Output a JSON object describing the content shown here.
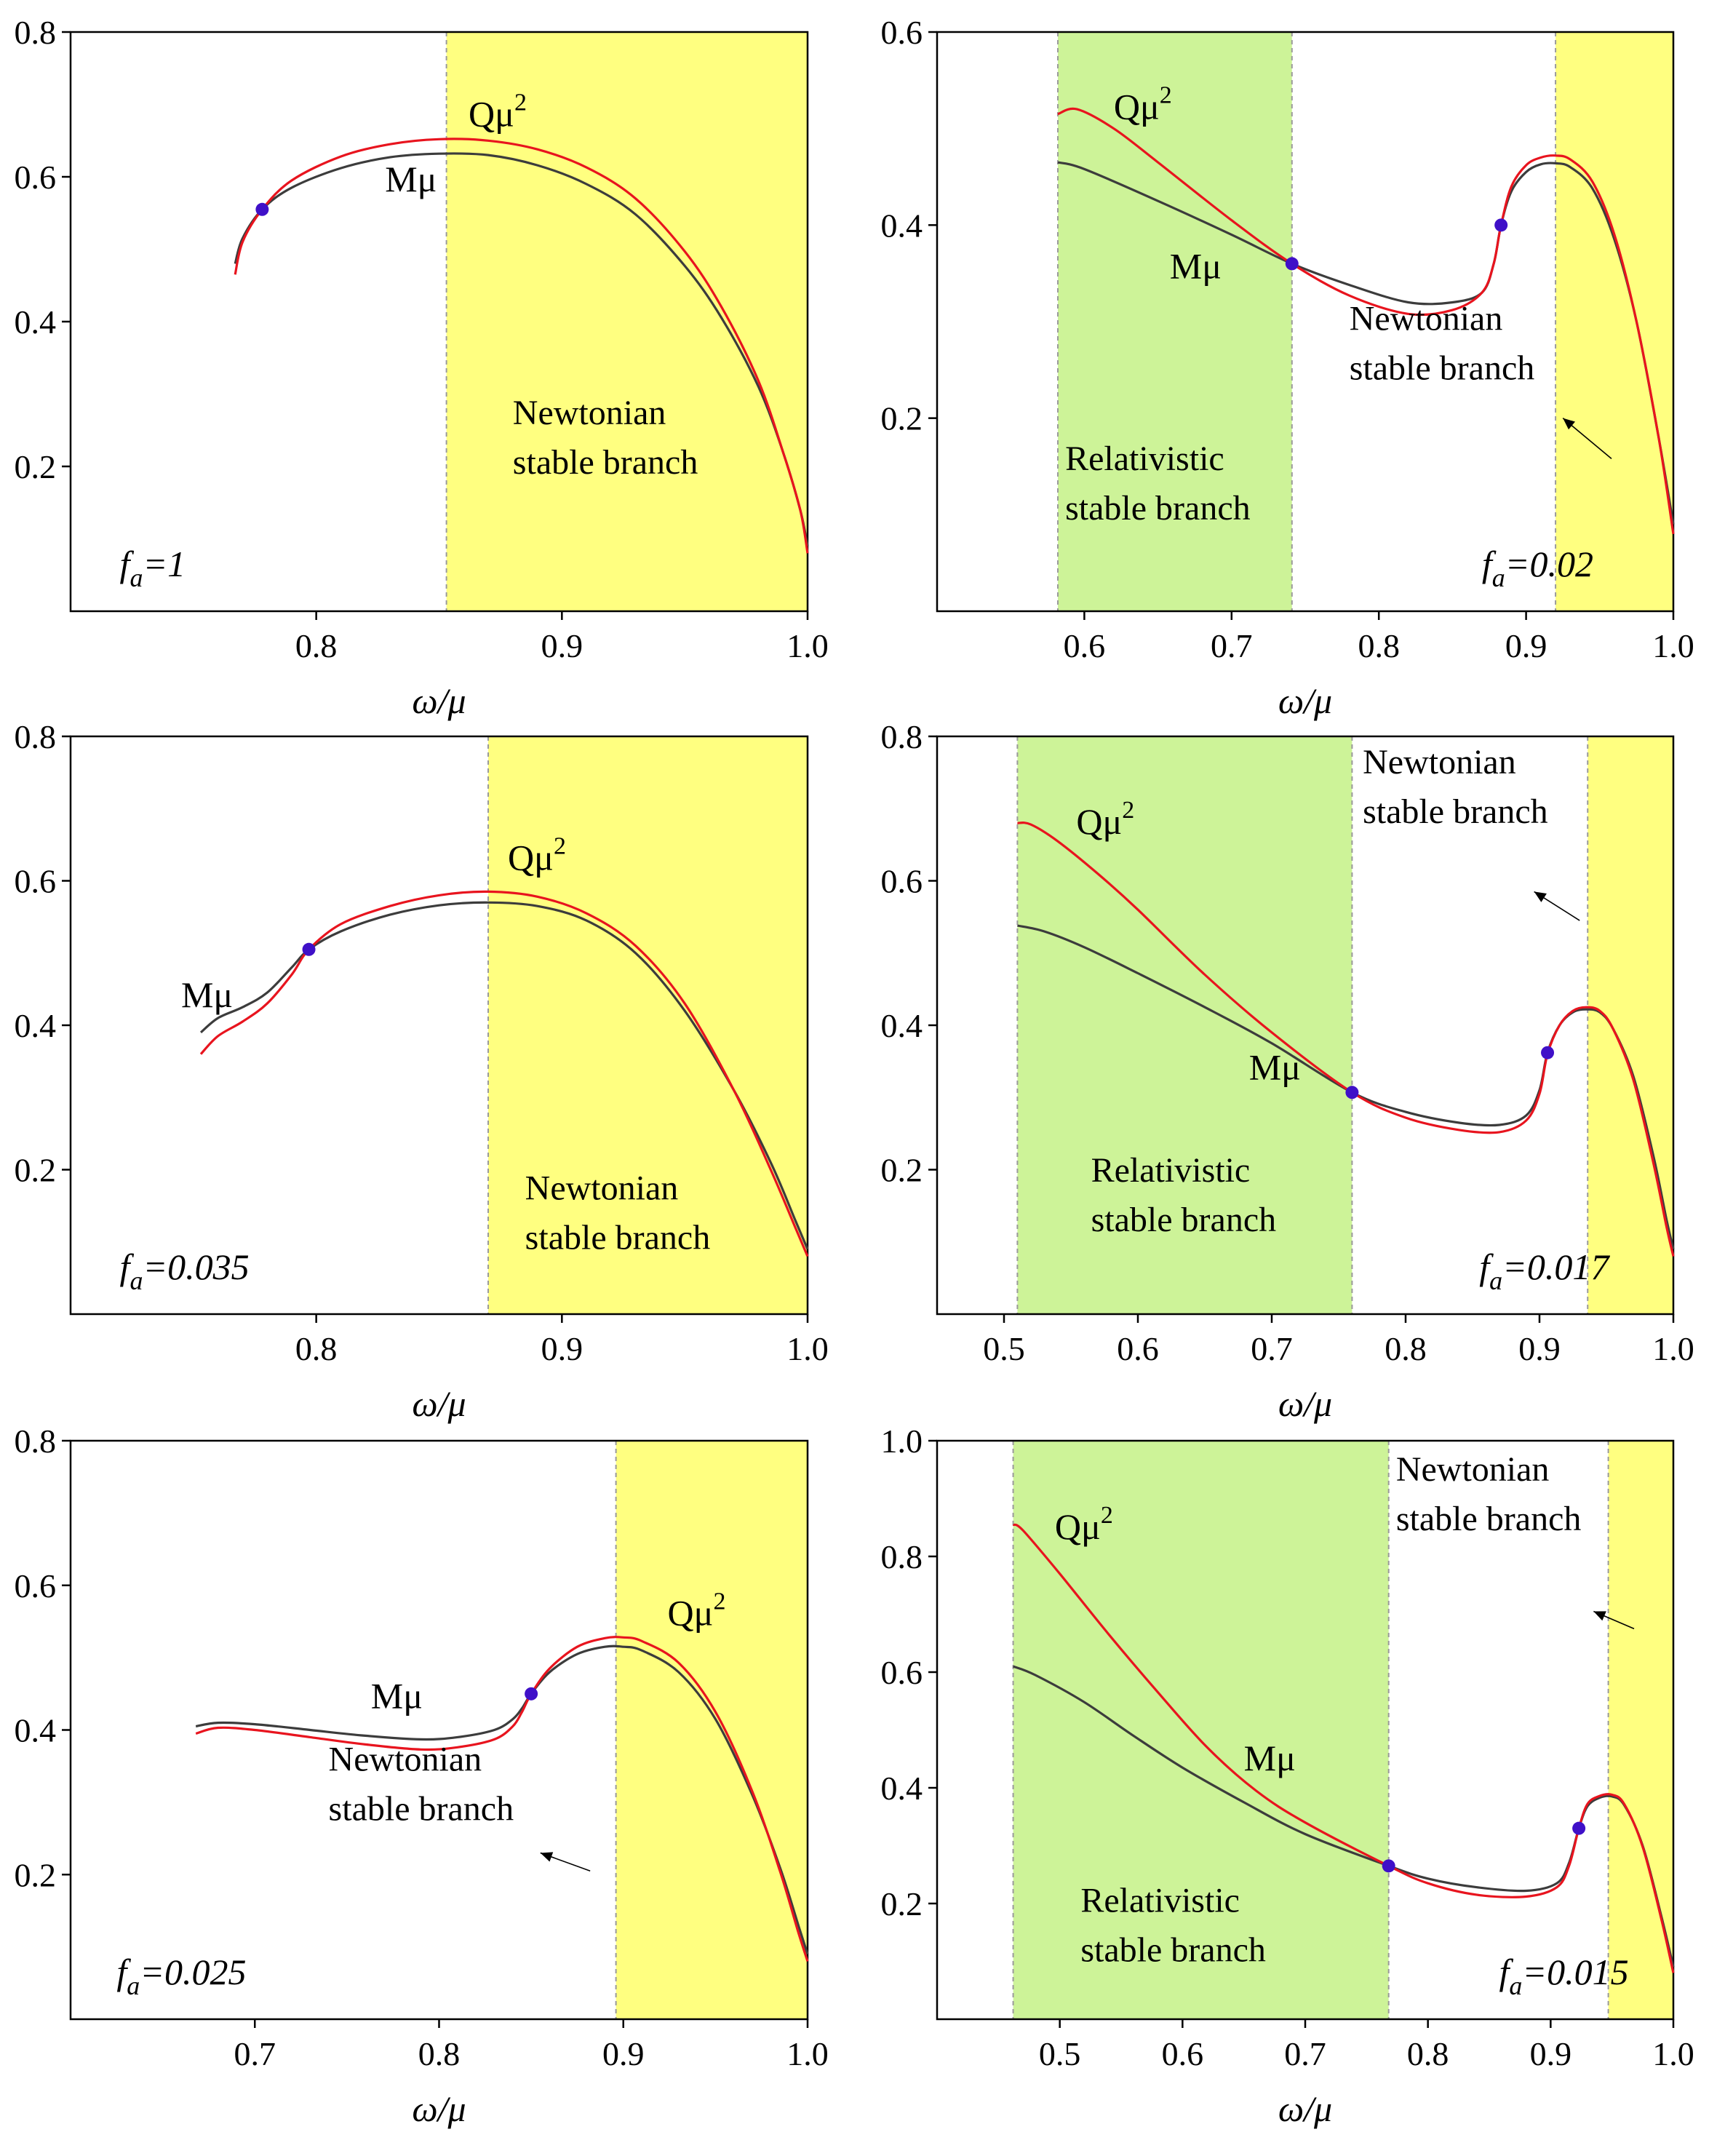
{
  "figure": {
    "colors": {
      "newtonian_fill": "#ffff80",
      "relativistic_fill": "#cdf398",
      "M_curve": "#3c3c3c",
      "Q_curve": "#e8141e",
      "marker": "#3f10c8",
      "axis": "#000000",
      "band_edge": "#9a9a9a"
    }
  },
  "chart_data": [
    {
      "type": "line",
      "panel": "top-left",
      "xlabel": "ω/μ",
      "ylabel": "",
      "xlim": [
        0.7,
        1.0
      ],
      "ylim": [
        0.0,
        0.8
      ],
      "xticks": [
        0.8,
        0.9,
        1.0
      ],
      "xtick_labels": [
        "0.8",
        "0.9",
        "1.0"
      ],
      "yticks": [
        0.2,
        0.4,
        0.6,
        0.8
      ],
      "ytick_labels": [
        "0.2",
        "0.4",
        "0.6",
        "0.8"
      ],
      "param_prefix": "f",
      "param_sub": "a",
      "param_value": "=1",
      "labels": {
        "M": "Mμ",
        "Q": "Qμ",
        "Q_sup": "2"
      },
      "regions": [
        {
          "kind": "newtonian",
          "x0": 0.853,
          "x1": 1.0,
          "text": [
            "Newtonian",
            "stable branch"
          ],
          "text_at": [
            0.88,
            0.19
          ]
        }
      ],
      "label_positions": {
        "M": [
          0.828,
          0.58
        ],
        "Q": [
          0.862,
          0.67
        ]
      },
      "arrow": null,
      "markers": [
        {
          "x": 0.778,
          "y": 0.555
        }
      ],
      "series": [
        {
          "name": "Mμ",
          "x": [
            0.767,
            0.77,
            0.778,
            0.79,
            0.81,
            0.83,
            0.85,
            0.87,
            0.89,
            0.91,
            0.93,
            0.95,
            0.965,
            0.98,
            0.99,
            0.997,
            1.0
          ],
          "y": [
            0.48,
            0.515,
            0.555,
            0.585,
            0.612,
            0.627,
            0.632,
            0.63,
            0.616,
            0.59,
            0.548,
            0.477,
            0.405,
            0.31,
            0.22,
            0.14,
            0.09
          ]
        },
        {
          "name": "Qμ²",
          "x": [
            0.767,
            0.77,
            0.778,
            0.79,
            0.81,
            0.83,
            0.85,
            0.87,
            0.89,
            0.91,
            0.93,
            0.95,
            0.965,
            0.98,
            0.99,
            0.997,
            1.0
          ],
          "y": [
            0.465,
            0.51,
            0.555,
            0.595,
            0.628,
            0.645,
            0.652,
            0.65,
            0.638,
            0.613,
            0.57,
            0.497,
            0.42,
            0.318,
            0.22,
            0.14,
            0.08
          ]
        }
      ]
    },
    {
      "type": "line",
      "panel": "top-right",
      "xlabel": "ω/μ",
      "ylabel": "",
      "xlim": [
        0.5,
        1.0
      ],
      "ylim": [
        0.0,
        0.6
      ],
      "xticks": [
        0.6,
        0.7,
        0.8,
        0.9,
        1.0
      ],
      "xtick_labels": [
        "0.6",
        "0.7",
        "0.8",
        "0.9",
        "1.0"
      ],
      "yticks": [
        0.2,
        0.4,
        0.6
      ],
      "ytick_labels": [
        "0.2",
        "0.4",
        "0.6"
      ],
      "param_prefix": "f",
      "param_sub": "a",
      "param_value": "=0.02",
      "labels": {
        "M": "Mμ",
        "Q": "Qμ",
        "Q_sup": "2"
      },
      "regions": [
        {
          "kind": "relativistic",
          "x0": 0.582,
          "x1": 0.741,
          "text": [
            "Relativistic",
            "stable branch"
          ],
          "text_at": [
            0.587,
            0.095
          ]
        },
        {
          "kind": "newtonian",
          "x0": 0.92,
          "x1": 1.0,
          "text": [
            "Newtonian",
            "stable branch"
          ],
          "text_at": [
            0.78,
            0.24
          ]
        }
      ],
      "label_positions": {
        "M": [
          0.658,
          0.345
        ],
        "Q": [
          0.62,
          0.51
        ]
      },
      "arrow": {
        "from": [
          0.958,
          0.158
        ],
        "to": [
          0.925,
          0.2
        ]
      },
      "markers": [
        {
          "x": 0.741,
          "y": 0.36
        },
        {
          "x": 0.883,
          "y": 0.4
        }
      ],
      "series": [
        {
          "name": "Mμ",
          "x": [
            0.582,
            0.6,
            0.65,
            0.7,
            0.741,
            0.78,
            0.82,
            0.85,
            0.87,
            0.878,
            0.883,
            0.89,
            0.9,
            0.91,
            0.92,
            0.93,
            0.945,
            0.96,
            0.975,
            0.99,
            1.0
          ],
          "y": [
            0.465,
            0.458,
            0.425,
            0.39,
            0.36,
            0.338,
            0.32,
            0.32,
            0.33,
            0.36,
            0.4,
            0.435,
            0.455,
            0.463,
            0.464,
            0.46,
            0.438,
            0.385,
            0.3,
            0.18,
            0.09
          ]
        },
        {
          "name": "Qμ²",
          "x": [
            0.582,
            0.595,
            0.62,
            0.65,
            0.7,
            0.741,
            0.78,
            0.82,
            0.85,
            0.87,
            0.878,
            0.883,
            0.89,
            0.9,
            0.91,
            0.92,
            0.93,
            0.945,
            0.96,
            0.975,
            0.99,
            1.0
          ],
          "y": [
            0.515,
            0.52,
            0.5,
            0.465,
            0.405,
            0.36,
            0.327,
            0.308,
            0.312,
            0.33,
            0.36,
            0.4,
            0.44,
            0.462,
            0.47,
            0.472,
            0.468,
            0.445,
            0.39,
            0.3,
            0.18,
            0.08
          ]
        }
      ]
    },
    {
      "type": "line",
      "panel": "middle-left",
      "xlabel": "ω/μ",
      "ylabel": "",
      "xlim": [
        0.7,
        1.0
      ],
      "ylim": [
        0.0,
        0.8
      ],
      "xticks": [
        0.8,
        0.9,
        1.0
      ],
      "xtick_labels": [
        "0.8",
        "0.9",
        "1.0"
      ],
      "yticks": [
        0.2,
        0.4,
        0.6,
        0.8
      ],
      "ytick_labels": [
        "0.2",
        "0.4",
        "0.6",
        "0.8"
      ],
      "param_prefix": "f",
      "param_sub": "a",
      "param_value": "=0.035",
      "labels": {
        "M": "Mμ",
        "Q": "Qμ",
        "Q_sup": "2"
      },
      "regions": [
        {
          "kind": "newtonian",
          "x0": 0.87,
          "x1": 1.0,
          "text": [
            "Newtonian",
            "stable branch"
          ],
          "text_at": [
            0.885,
            0.09
          ]
        }
      ],
      "label_positions": {
        "M": [
          0.745,
          0.425
        ],
        "Q": [
          0.878,
          0.615
        ]
      },
      "arrow": null,
      "markers": [
        {
          "x": 0.797,
          "y": 0.505
        }
      ],
      "series": [
        {
          "name": "Mμ",
          "x": [
            0.753,
            0.76,
            0.77,
            0.78,
            0.79,
            0.797,
            0.81,
            0.83,
            0.85,
            0.87,
            0.89,
            0.91,
            0.93,
            0.95,
            0.97,
            0.985,
            0.995,
            1.0
          ],
          "y": [
            0.39,
            0.41,
            0.425,
            0.445,
            0.48,
            0.505,
            0.53,
            0.553,
            0.566,
            0.57,
            0.565,
            0.545,
            0.5,
            0.42,
            0.31,
            0.21,
            0.13,
            0.09
          ]
        },
        {
          "name": "Qμ²",
          "x": [
            0.753,
            0.76,
            0.77,
            0.78,
            0.79,
            0.797,
            0.81,
            0.83,
            0.85,
            0.87,
            0.89,
            0.91,
            0.93,
            0.95,
            0.97,
            0.985,
            0.995,
            1.0
          ],
          "y": [
            0.36,
            0.385,
            0.405,
            0.43,
            0.47,
            0.505,
            0.54,
            0.565,
            0.58,
            0.585,
            0.578,
            0.555,
            0.51,
            0.43,
            0.31,
            0.2,
            0.12,
            0.08
          ]
        }
      ]
    },
    {
      "type": "line",
      "panel": "middle-right",
      "xlabel": "ω/μ",
      "ylabel": "",
      "xlim": [
        0.45,
        1.0
      ],
      "ylim": [
        0.0,
        0.8
      ],
      "xticks": [
        0.5,
        0.6,
        0.7,
        0.8,
        0.9,
        1.0
      ],
      "xtick_labels": [
        "0.5",
        "0.6",
        "0.7",
        "0.8",
        "0.9",
        "1.0"
      ],
      "yticks": [
        0.2,
        0.4,
        0.6,
        0.8
      ],
      "ytick_labels": [
        "0.2",
        "0.4",
        "0.6",
        "0.8"
      ],
      "param_prefix": "f",
      "param_sub": "a",
      "param_value": "=0.017",
      "labels": {
        "M": "Mμ",
        "Q": "Qμ",
        "Q_sup": "2"
      },
      "regions": [
        {
          "kind": "relativistic",
          "x0": 0.51,
          "x1": 0.76,
          "text": [
            "Relativistic",
            "stable branch"
          ],
          "text_at": [
            0.565,
            0.115
          ]
        },
        {
          "kind": "newtonian",
          "x0": 0.936,
          "x1": 1.0,
          "text": [
            "Newtonian",
            "stable branch"
          ],
          "text_at": [
            0.768,
            0.68
          ]
        }
      ],
      "label_positions": {
        "M": [
          0.683,
          0.325
        ],
        "Q": [
          0.554,
          0.665
        ]
      },
      "arrow": {
        "from": [
          0.93,
          0.545
        ],
        "to": [
          0.896,
          0.585
        ]
      },
      "markers": [
        {
          "x": 0.76,
          "y": 0.307
        },
        {
          "x": 0.906,
          "y": 0.362
        }
      ],
      "series": [
        {
          "name": "Mμ",
          "x": [
            0.51,
            0.53,
            0.56,
            0.6,
            0.65,
            0.7,
            0.76,
            0.8,
            0.84,
            0.87,
            0.89,
            0.9,
            0.906,
            0.915,
            0.925,
            0.935,
            0.945,
            0.955,
            0.97,
            0.985,
            0.995,
            1.0
          ],
          "y": [
            0.538,
            0.53,
            0.508,
            0.472,
            0.425,
            0.375,
            0.307,
            0.28,
            0.265,
            0.262,
            0.275,
            0.31,
            0.362,
            0.4,
            0.418,
            0.422,
            0.418,
            0.395,
            0.33,
            0.22,
            0.13,
            0.09
          ]
        },
        {
          "name": "Qμ²",
          "x": [
            0.51,
            0.52,
            0.54,
            0.57,
            0.6,
            0.65,
            0.7,
            0.76,
            0.8,
            0.84,
            0.87,
            0.89,
            0.9,
            0.906,
            0.915,
            0.925,
            0.935,
            0.945,
            0.955,
            0.97,
            0.985,
            0.995,
            1.0
          ],
          "y": [
            0.68,
            0.678,
            0.655,
            0.61,
            0.56,
            0.47,
            0.39,
            0.307,
            0.272,
            0.255,
            0.252,
            0.268,
            0.305,
            0.36,
            0.4,
            0.42,
            0.425,
            0.42,
            0.395,
            0.325,
            0.21,
            0.12,
            0.08
          ]
        }
      ]
    },
    {
      "type": "line",
      "panel": "bottom-left",
      "xlabel": "ω/μ",
      "ylabel": "",
      "xlim": [
        0.6,
        1.0
      ],
      "ylim": [
        0.0,
        0.8
      ],
      "xticks": [
        0.7,
        0.8,
        0.9,
        1.0
      ],
      "xtick_labels": [
        "0.7",
        "0.8",
        "0.9",
        "1.0"
      ],
      "yticks": [
        0.2,
        0.4,
        0.6,
        0.8
      ],
      "ytick_labels": [
        "0.2",
        "0.4",
        "0.6",
        "0.8"
      ],
      "param_prefix": "f",
      "param_sub": "a",
      "param_value": "=0.025",
      "labels": {
        "M": "Mμ",
        "Q": "Qμ",
        "Q_sup": "2"
      },
      "regions": [
        {
          "kind": "newtonian",
          "x0": 0.896,
          "x1": 1.0,
          "text": [
            "Newtonian",
            "stable branch"
          ],
          "text_at": [
            0.74,
            0.275
          ]
        }
      ],
      "label_positions": {
        "M": [
          0.763,
          0.43
        ],
        "Q": [
          0.924,
          0.545
        ]
      },
      "arrow": {
        "from": [
          0.882,
          0.205
        ],
        "to": [
          0.855,
          0.23
        ]
      },
      "markers": [
        {
          "x": 0.85,
          "y": 0.45
        }
      ],
      "series": [
        {
          "name": "Mμ",
          "x": [
            0.668,
            0.68,
            0.7,
            0.73,
            0.76,
            0.79,
            0.81,
            0.83,
            0.84,
            0.845,
            0.85,
            0.86,
            0.875,
            0.89,
            0.9,
            0.91,
            0.93,
            0.95,
            0.97,
            0.985,
            0.995,
            1.0
          ],
          "y": [
            0.405,
            0.41,
            0.408,
            0.4,
            0.392,
            0.387,
            0.39,
            0.4,
            0.415,
            0.43,
            0.45,
            0.48,
            0.505,
            0.515,
            0.515,
            0.51,
            0.48,
            0.415,
            0.31,
            0.21,
            0.13,
            0.09
          ]
        },
        {
          "name": "Qμ²",
          "x": [
            0.668,
            0.68,
            0.7,
            0.73,
            0.76,
            0.79,
            0.81,
            0.83,
            0.84,
            0.845,
            0.85,
            0.86,
            0.875,
            0.89,
            0.9,
            0.91,
            0.93,
            0.95,
            0.97,
            0.985,
            0.995,
            1.0
          ],
          "y": [
            0.395,
            0.403,
            0.4,
            0.39,
            0.38,
            0.373,
            0.376,
            0.387,
            0.405,
            0.425,
            0.45,
            0.485,
            0.515,
            0.527,
            0.528,
            0.523,
            0.493,
            0.425,
            0.315,
            0.205,
            0.12,
            0.08
          ]
        }
      ]
    },
    {
      "type": "line",
      "panel": "bottom-right",
      "xlabel": "ω/μ",
      "ylabel": "",
      "xlim": [
        0.4,
        1.0
      ],
      "ylim": [
        0.0,
        1.0
      ],
      "xticks": [
        0.5,
        0.6,
        0.7,
        0.8,
        0.9,
        1.0
      ],
      "xtick_labels": [
        "0.5",
        "0.6",
        "0.7",
        "0.8",
        "0.9",
        "1.0"
      ],
      "yticks": [
        0.2,
        0.4,
        0.6,
        0.8,
        1.0
      ],
      "ytick_labels": [
        "0.2",
        "0.4",
        "0.6",
        "0.8",
        "1.0"
      ],
      "param_prefix": "f",
      "param_sub": "a",
      "param_value": "=0.015",
      "labels": {
        "M": "Mμ",
        "Q": "Qμ",
        "Q_sup": "2"
      },
      "regions": [
        {
          "kind": "relativistic",
          "x0": 0.462,
          "x1": 0.768,
          "text": [
            "Relativistic",
            "stable branch"
          ],
          "text_at": [
            0.517,
            0.1
          ]
        },
        {
          "kind": "newtonian",
          "x0": 0.947,
          "x1": 1.0,
          "text": [
            "Newtonian",
            "stable branch"
          ],
          "text_at": [
            0.774,
            0.845
          ]
        }
      ],
      "label_positions": {
        "M": [
          0.65,
          0.43
        ],
        "Q": [
          0.496,
          0.83
        ]
      },
      "arrow": {
        "from": [
          0.968,
          0.675
        ],
        "to": [
          0.935,
          0.705
        ]
      },
      "markers": [
        {
          "x": 0.768,
          "y": 0.265
        },
        {
          "x": 0.923,
          "y": 0.33
        }
      ],
      "series": [
        {
          "name": "Mμ",
          "x": [
            0.462,
            0.48,
            0.52,
            0.56,
            0.6,
            0.65,
            0.7,
            0.768,
            0.8,
            0.84,
            0.88,
            0.905,
            0.915,
            0.923,
            0.93,
            0.94,
            0.95,
            0.96,
            0.975,
            0.99,
            1.0
          ],
          "y": [
            0.61,
            0.595,
            0.548,
            0.49,
            0.435,
            0.375,
            0.32,
            0.265,
            0.243,
            0.228,
            0.222,
            0.235,
            0.27,
            0.33,
            0.368,
            0.383,
            0.385,
            0.37,
            0.3,
            0.18,
            0.09
          ]
        },
        {
          "name": "Qμ²",
          "x": [
            0.462,
            0.47,
            0.5,
            0.54,
            0.58,
            0.62,
            0.66,
            0.7,
            0.768,
            0.8,
            0.84,
            0.88,
            0.905,
            0.915,
            0.923,
            0.93,
            0.94,
            0.95,
            0.96,
            0.975,
            0.99,
            1.0
          ],
          "y": [
            0.855,
            0.845,
            0.77,
            0.665,
            0.565,
            0.47,
            0.395,
            0.34,
            0.265,
            0.235,
            0.215,
            0.212,
            0.228,
            0.265,
            0.33,
            0.372,
            0.386,
            0.388,
            0.372,
            0.298,
            0.175,
            0.08
          ]
        }
      ]
    }
  ]
}
